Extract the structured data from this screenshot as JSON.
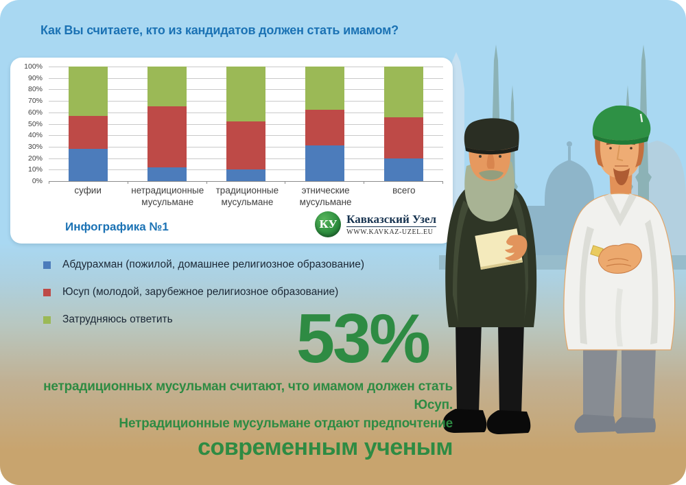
{
  "colors": {
    "accent_blue": "#1B72B4",
    "accent_green": "#2E8B43",
    "bar_blue": "#4C7CBB",
    "bar_red": "#BE4A47",
    "bar_green": "#9BB956",
    "sky": "#A9D8F2",
    "sand": "#C8A46E"
  },
  "chart_data": {
    "type": "bar",
    "subtype": "stacked-100-percent",
    "title": "Как Вы считаете, кто из кандидатов должен стать имамом?",
    "categories": [
      "суфии",
      "нетрадиционные мусульмане",
      "традиционные мусульмане",
      "этнические мусульмане",
      "всего"
    ],
    "series": [
      {
        "name": "Абдурахман (пожилой, домашнее религиозное образование)",
        "color": "#4C7CBB",
        "values": [
          28,
          12,
          10,
          31,
          20
        ]
      },
      {
        "name": "Юсуп (молодой, зарубежное религиозное образование)",
        "color": "#BE4A47",
        "values": [
          29,
          53,
          42,
          31,
          36
        ]
      },
      {
        "name": "Затрудняюсь ответить",
        "color": "#9BB956",
        "values": [
          43,
          35,
          48,
          38,
          44
        ]
      }
    ],
    "y_ticks": [
      "100%",
      "90%",
      "80%",
      "70%",
      "60%",
      "50%",
      "40%",
      "30%",
      "20%",
      "10%",
      "0%"
    ],
    "ylim": [
      0,
      100
    ],
    "grid": true,
    "legend_position": "below-panel"
  },
  "panel": {
    "caption": "Инфографика №1"
  },
  "brand": {
    "initials": "КУ",
    "name": "Кавказский Узел",
    "site": "WWW.KAVKAZ-UZEL.EU"
  },
  "callout": {
    "percent": "53%",
    "line1": "нетрадиционных мусульман считают, что имамом должен стать Юсуп.",
    "line2": "Нетрадиционные мусульмане отдают предпочтение",
    "line3": "современным ученым"
  }
}
